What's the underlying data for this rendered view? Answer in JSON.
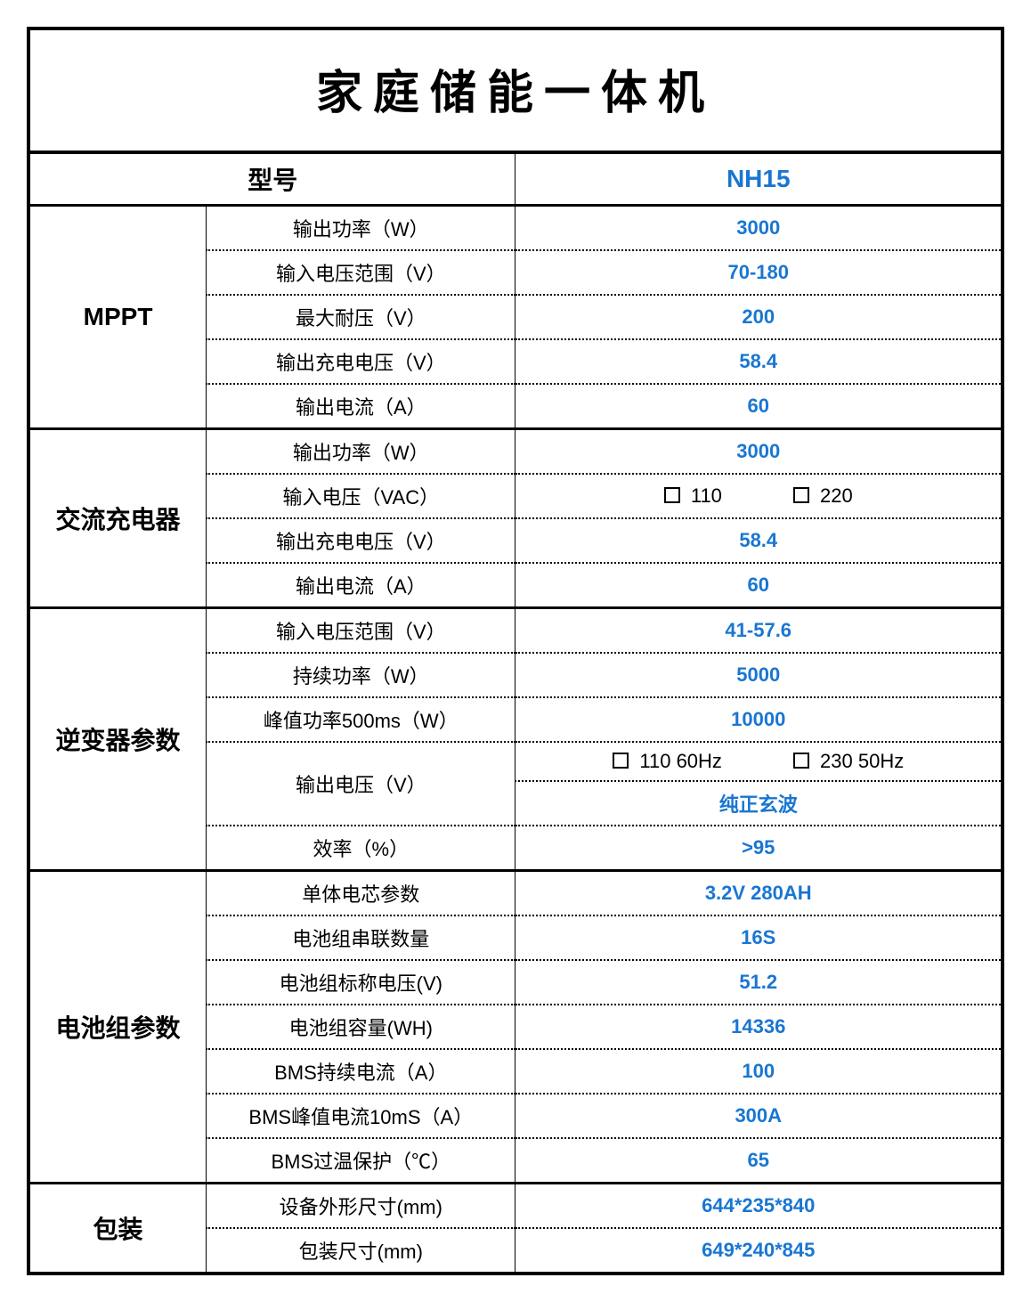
{
  "title": "家庭储能一体机",
  "header": {
    "label": "型号",
    "value": "NH15"
  },
  "colors": {
    "accent": "#1976d2",
    "text": "#000000",
    "border": "#000000",
    "background": "#ffffff"
  },
  "sections": [
    {
      "category": "MPPT",
      "rows": [
        {
          "label": "输出功率（W）",
          "value": "3000"
        },
        {
          "label": "输入电压范围（V）",
          "value": "70-180"
        },
        {
          "label": "最大耐压（V）",
          "value": "200"
        },
        {
          "label": "输出充电电压（V）",
          "value": "58.4"
        },
        {
          "label": "输出电流（A）",
          "value": "60"
        }
      ]
    },
    {
      "category": "交流充电器",
      "rows": [
        {
          "label": "输出功率（W）",
          "value": "3000"
        },
        {
          "label": "输入电压（VAC）",
          "checkboxes": [
            "110",
            "220"
          ]
        },
        {
          "label": "输出充电电压（V）",
          "value": "58.4"
        },
        {
          "label": "输出电流（A）",
          "value": "60"
        }
      ]
    },
    {
      "category": "逆变器参数",
      "rows": [
        {
          "label": "输入电压范围（V）",
          "value": "41-57.6"
        },
        {
          "label": "持续功率（W）",
          "value": "5000"
        },
        {
          "label": "峰值功率500ms（W）",
          "value": "10000"
        },
        {
          "label": "输出电压（V）",
          "checkboxes": [
            "110  60Hz",
            "230  50Hz"
          ],
          "subvalue": "纯正玄波",
          "rowspan": 2
        },
        {
          "label": "效率（%）",
          "value": ">95"
        }
      ]
    },
    {
      "category": "电池组参数",
      "rows": [
        {
          "label": "单体电芯参数",
          "value": "3.2V 280AH"
        },
        {
          "label": "电池组串联数量",
          "value": "16S"
        },
        {
          "label": "电池组标称电压(V)",
          "value": "51.2"
        },
        {
          "label": "电池组容量(WH)",
          "value": "14336"
        },
        {
          "label": "BMS持续电流（A）",
          "value": "100"
        },
        {
          "label": "BMS峰值电流10mS（A）",
          "value": "300A"
        },
        {
          "label": "BMS过温保护（℃）",
          "value": "65"
        }
      ]
    },
    {
      "category": "包装",
      "rows": [
        {
          "label": "设备外形尺寸(mm)",
          "value": "644*235*840"
        },
        {
          "label": "包装尺寸(mm)",
          "value": "649*240*845"
        }
      ]
    }
  ]
}
